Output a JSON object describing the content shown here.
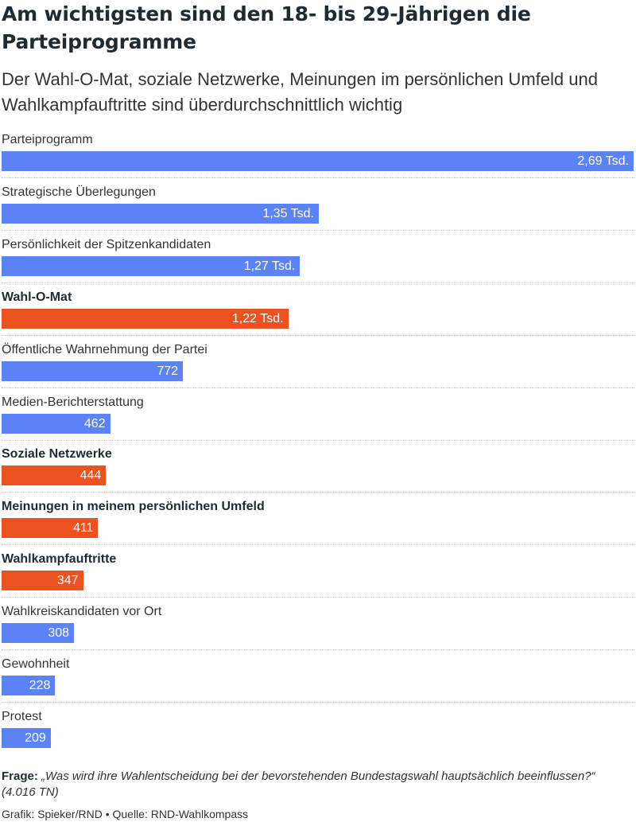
{
  "header": {
    "title": "Am wichtigsten sind den 18- bis 29-Jährigen die Parteiprogramme",
    "subtitle": "Der Wahl-O-Mat, soziale Netzwerke, Meinungen im persönlichen Umfeld und Wahlkampfauftritte sind überdurchschnittlich wichtig"
  },
  "colors": {
    "default": "#5b82f7",
    "highlight": "#ec5120"
  },
  "chart_data": {
    "type": "bar",
    "orientation": "horizontal",
    "title": "Am wichtigsten sind den 18- bis 29-Jährigen die Parteiprogramme",
    "subtitle": "Der Wahl-O-Mat, soziale Netzwerke, Meinungen im persönlichen Umfeld und Wahlkampfauftritte sind überdurchschnittlich wichtig",
    "categories": [
      "Parteiprogramm",
      "Strategische Überlegungen",
      "Persönlichkeit der Spitzenkandidaten",
      "Wahl-O-Mat",
      "Öffentliche Wahrnehmung der Partei",
      "Medien-Berichterstattung",
      "Soziale Netzwerke",
      "Meinungen in meinem persönlichen Umfeld",
      "Wahlkampfauftritte",
      "Wahlkreiskandidaten vor Ort",
      "Gewohnheit",
      "Protest"
    ],
    "values": [
      2690,
      1350,
      1270,
      1220,
      772,
      462,
      444,
      411,
      347,
      308,
      228,
      209
    ],
    "value_labels": [
      "2,69 Tsd.",
      "1,35 Tsd.",
      "1,27 Tsd.",
      "1,22 Tsd.",
      "772",
      "462",
      "444",
      "411",
      "347",
      "308",
      "228",
      "209"
    ],
    "highlighted": [
      false,
      false,
      false,
      true,
      false,
      false,
      true,
      true,
      true,
      false,
      false,
      false
    ],
    "xlim": [
      0,
      2690
    ],
    "grid": false,
    "legend": "none"
  },
  "footer": {
    "question_label": "Frage:",
    "question_text": "„Was wird ihre Wahlentscheidung bei der bevorstehenden Bundestagswahl hauptsächlich beeinflussen?“ (4.016 TN)",
    "credit": "Grafik: Spieker/RND • Quelle: RND-Wahlkompass"
  }
}
